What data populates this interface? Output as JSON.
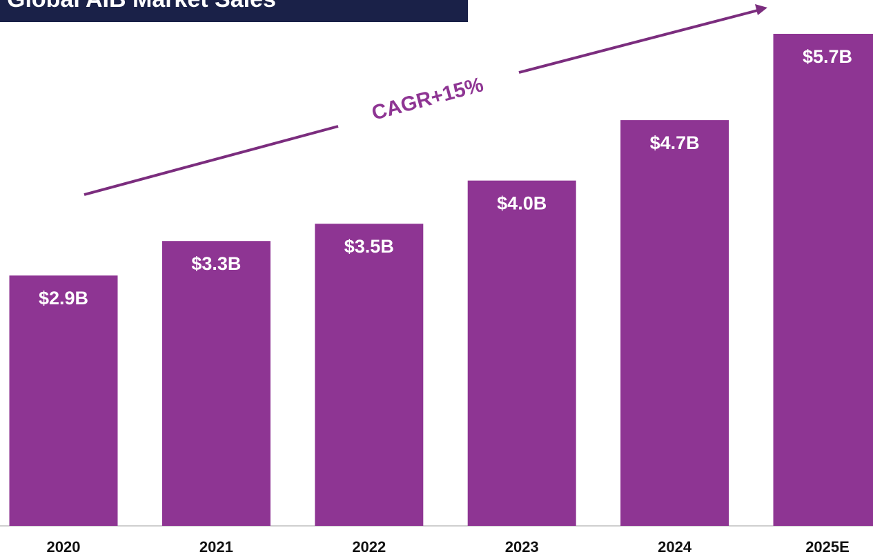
{
  "chart_data": {
    "type": "bar",
    "title": "Global AIB Market Sales",
    "categories": [
      "2020",
      "2021",
      "2022",
      "2023",
      "2024",
      "2025E"
    ],
    "values": [
      2.9,
      3.3,
      3.5,
      4.0,
      4.7,
      5.7
    ],
    "value_labels": [
      "$2.9B",
      "$3.3B",
      "$3.5B",
      "$4.0B",
      "$4.7B",
      "$5.7B"
    ],
    "color": "#8e3593",
    "annotation": "CAGR+15%"
  }
}
